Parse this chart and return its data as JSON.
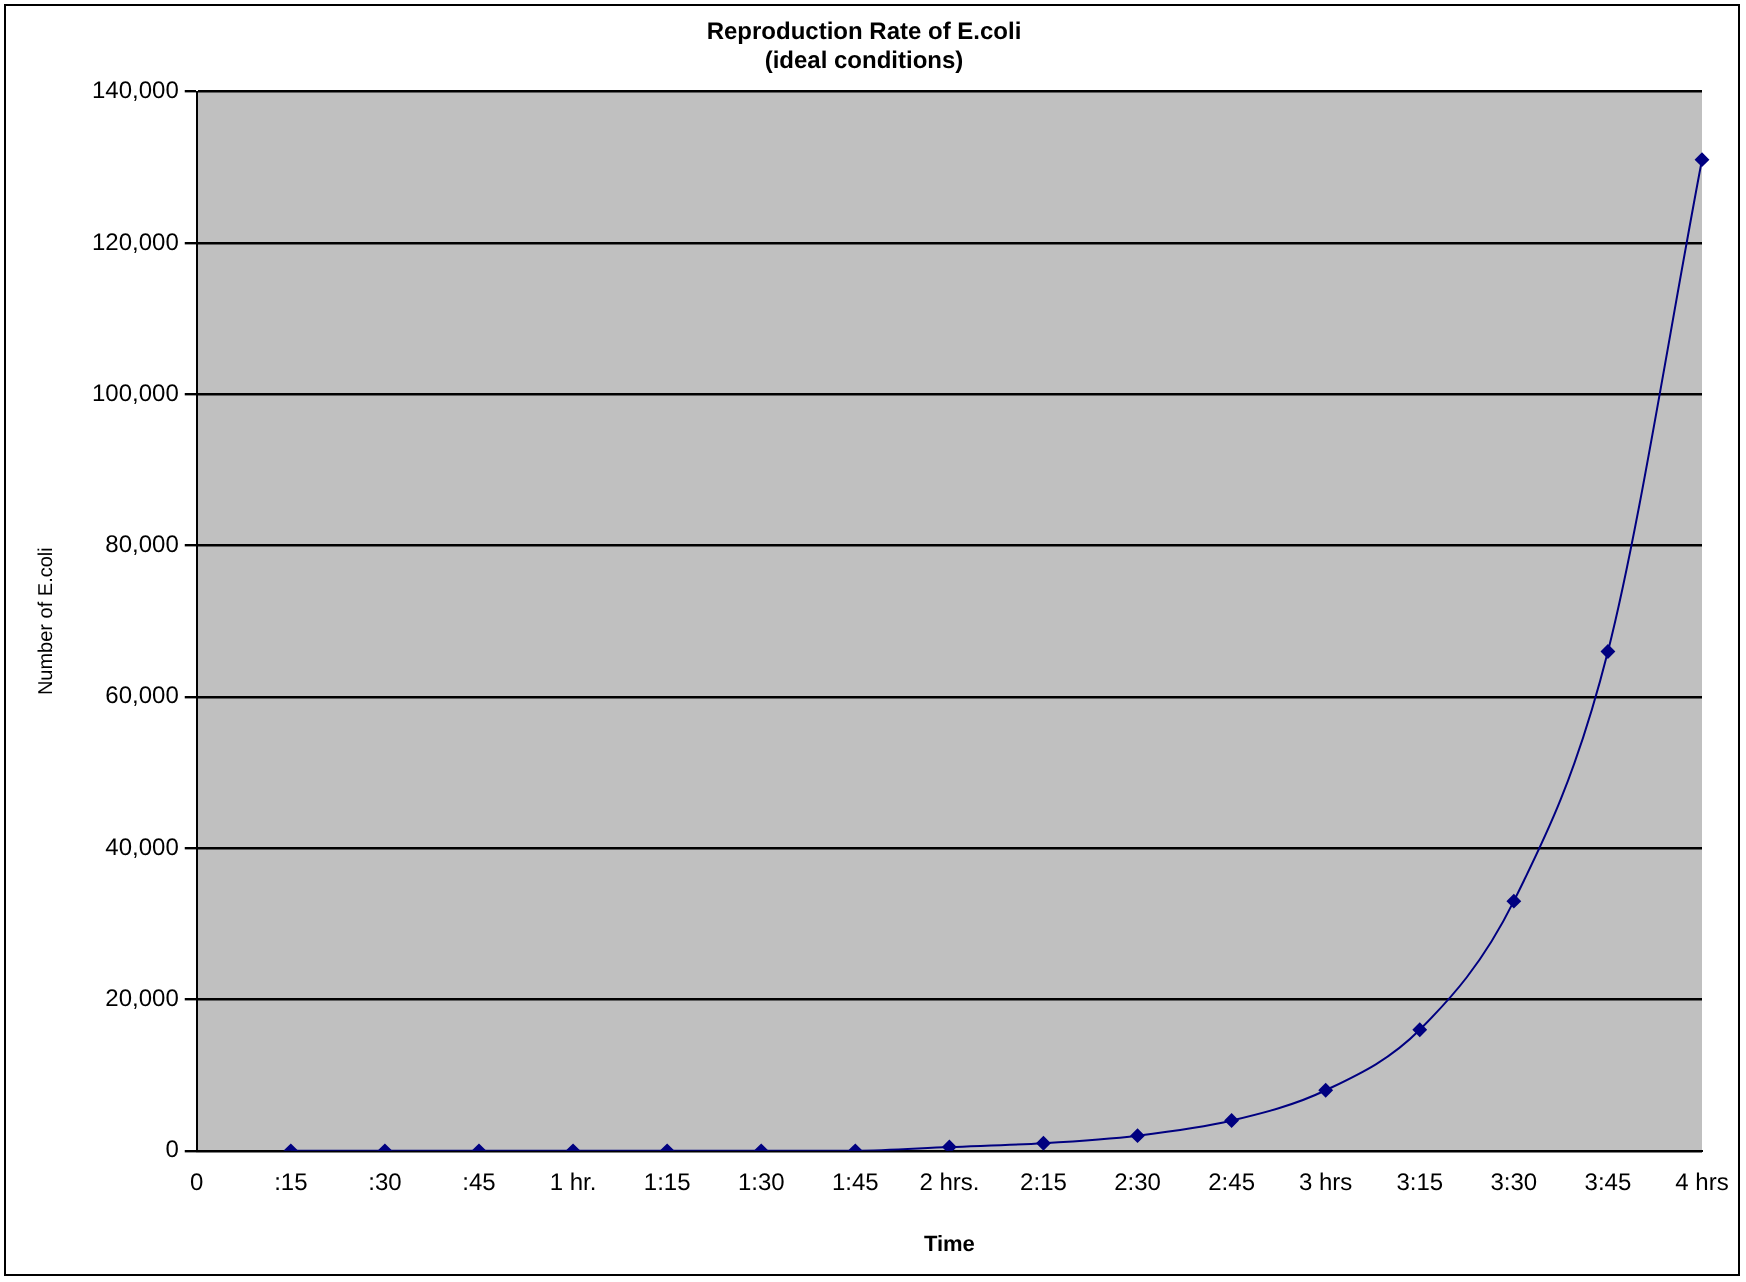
{
  "chart_data": {
    "type": "line",
    "title": "Reproduction Rate of E.coli",
    "subtitle": "(ideal conditions)",
    "xlabel": "Time",
    "ylabel": "Number of E.coli",
    "categories": [
      "0",
      ":15",
      ":30",
      ":45",
      "1 hr.",
      "1:15",
      "1:30",
      "1:45",
      "2 hrs.",
      "2:15",
      "2:30",
      "2:45",
      "3 hrs",
      "3:15",
      "3:30",
      "3:45",
      "4 hrs"
    ],
    "series": [
      {
        "color": "#000080",
        "values": [
          null,
          0,
          0,
          0,
          0,
          0,
          0,
          0,
          500,
          1000,
          2000,
          4000,
          8000,
          16000,
          33000,
          66000,
          131000
        ]
      }
    ],
    "ylim": [
      0,
      140000
    ],
    "yticks": [
      {
        "value": 0,
        "label": "0"
      },
      {
        "value": 20000,
        "label": "20,000"
      },
      {
        "value": 40000,
        "label": "40,000"
      },
      {
        "value": 60000,
        "label": "60,000"
      },
      {
        "value": 80000,
        "label": "80,000"
      },
      {
        "value": 100000,
        "label": "100,000"
      },
      {
        "value": 120000,
        "label": "120,000"
      },
      {
        "value": 140000,
        "label": "140,000"
      }
    ],
    "grid": "y",
    "legend": false,
    "marker": "diamond",
    "line_style": "solid"
  }
}
